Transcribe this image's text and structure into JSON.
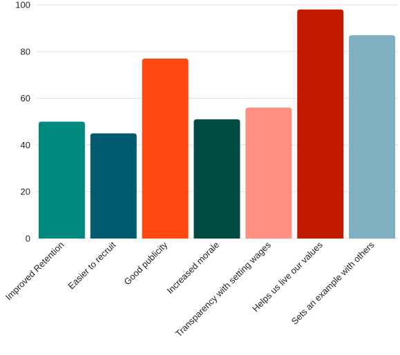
{
  "chart_data": {
    "type": "bar",
    "categories": [
      "Improved Retention",
      "Easier to recruit",
      "Good publicity",
      "Increased morale",
      "Transparency with setting wages",
      "Helps us live our values",
      "Sets an example with others"
    ],
    "values": [
      50,
      45,
      77,
      51,
      56,
      98,
      87
    ],
    "colors": [
      "#008a80",
      "#005b6e",
      "#ff4613",
      "#004b44",
      "#ff8f82",
      "#c11a00",
      "#7fafc1"
    ],
    "ylim": [
      0,
      100
    ],
    "yticks": [
      0,
      20,
      40,
      60,
      80,
      100
    ],
    "grid": true,
    "gridColor": "#dddddd",
    "title": "",
    "xlabel": "",
    "ylabel": ""
  }
}
